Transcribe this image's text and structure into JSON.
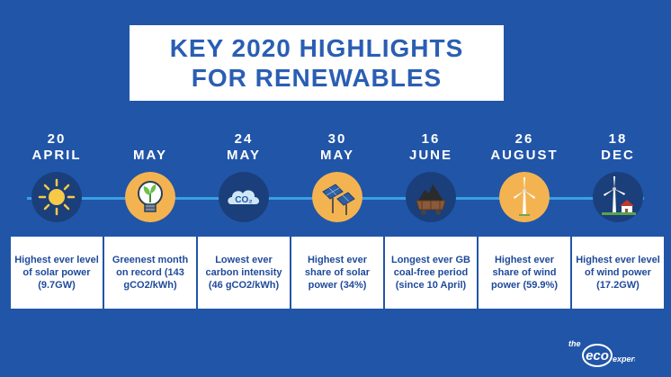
{
  "title": {
    "line1": "KEY 2020 HIGHLIGHTS",
    "line2": "FOR RENEWABLES"
  },
  "milestones": [
    {
      "date_line1": "20",
      "date_line2": "APRIL",
      "icon": "sun-icon",
      "text": "Highest ever level of solar power (9.7GW)"
    },
    {
      "date_line1": "",
      "date_line2": "MAY",
      "icon": "lightbulb-plant-icon",
      "text": "Greenest month on record (143 gCO2/kWh)"
    },
    {
      "date_line1": "24",
      "date_line2": "MAY",
      "icon": "co2-cloud-icon",
      "text": "Lowest ever carbon intensity (46 gCO2/kWh)"
    },
    {
      "date_line1": "30",
      "date_line2": "MAY",
      "icon": "solar-panel-icon",
      "text": "Highest ever share of solar power (34%)"
    },
    {
      "date_line1": "16",
      "date_line2": "JUNE",
      "icon": "coal-cart-icon",
      "text": "Longest ever GB coal-free period (since 10 April)"
    },
    {
      "date_line1": "26",
      "date_line2": "AUGUST",
      "icon": "wind-turbine-icon",
      "text": "Highest ever share of wind power (59.9%)"
    },
    {
      "date_line1": "18",
      "date_line2": "DEC",
      "icon": "wind-turbine-house-icon",
      "text": "Highest ever level of wind power (17.2GW)"
    }
  ],
  "logo": {
    "the": "the",
    "eco": "eco",
    "experts": "experts"
  },
  "colors": {
    "background": "#2155a8",
    "circle_dark": "#1a3f7a",
    "circle_yellow": "#f4b351",
    "line": "#3aa0e6"
  }
}
